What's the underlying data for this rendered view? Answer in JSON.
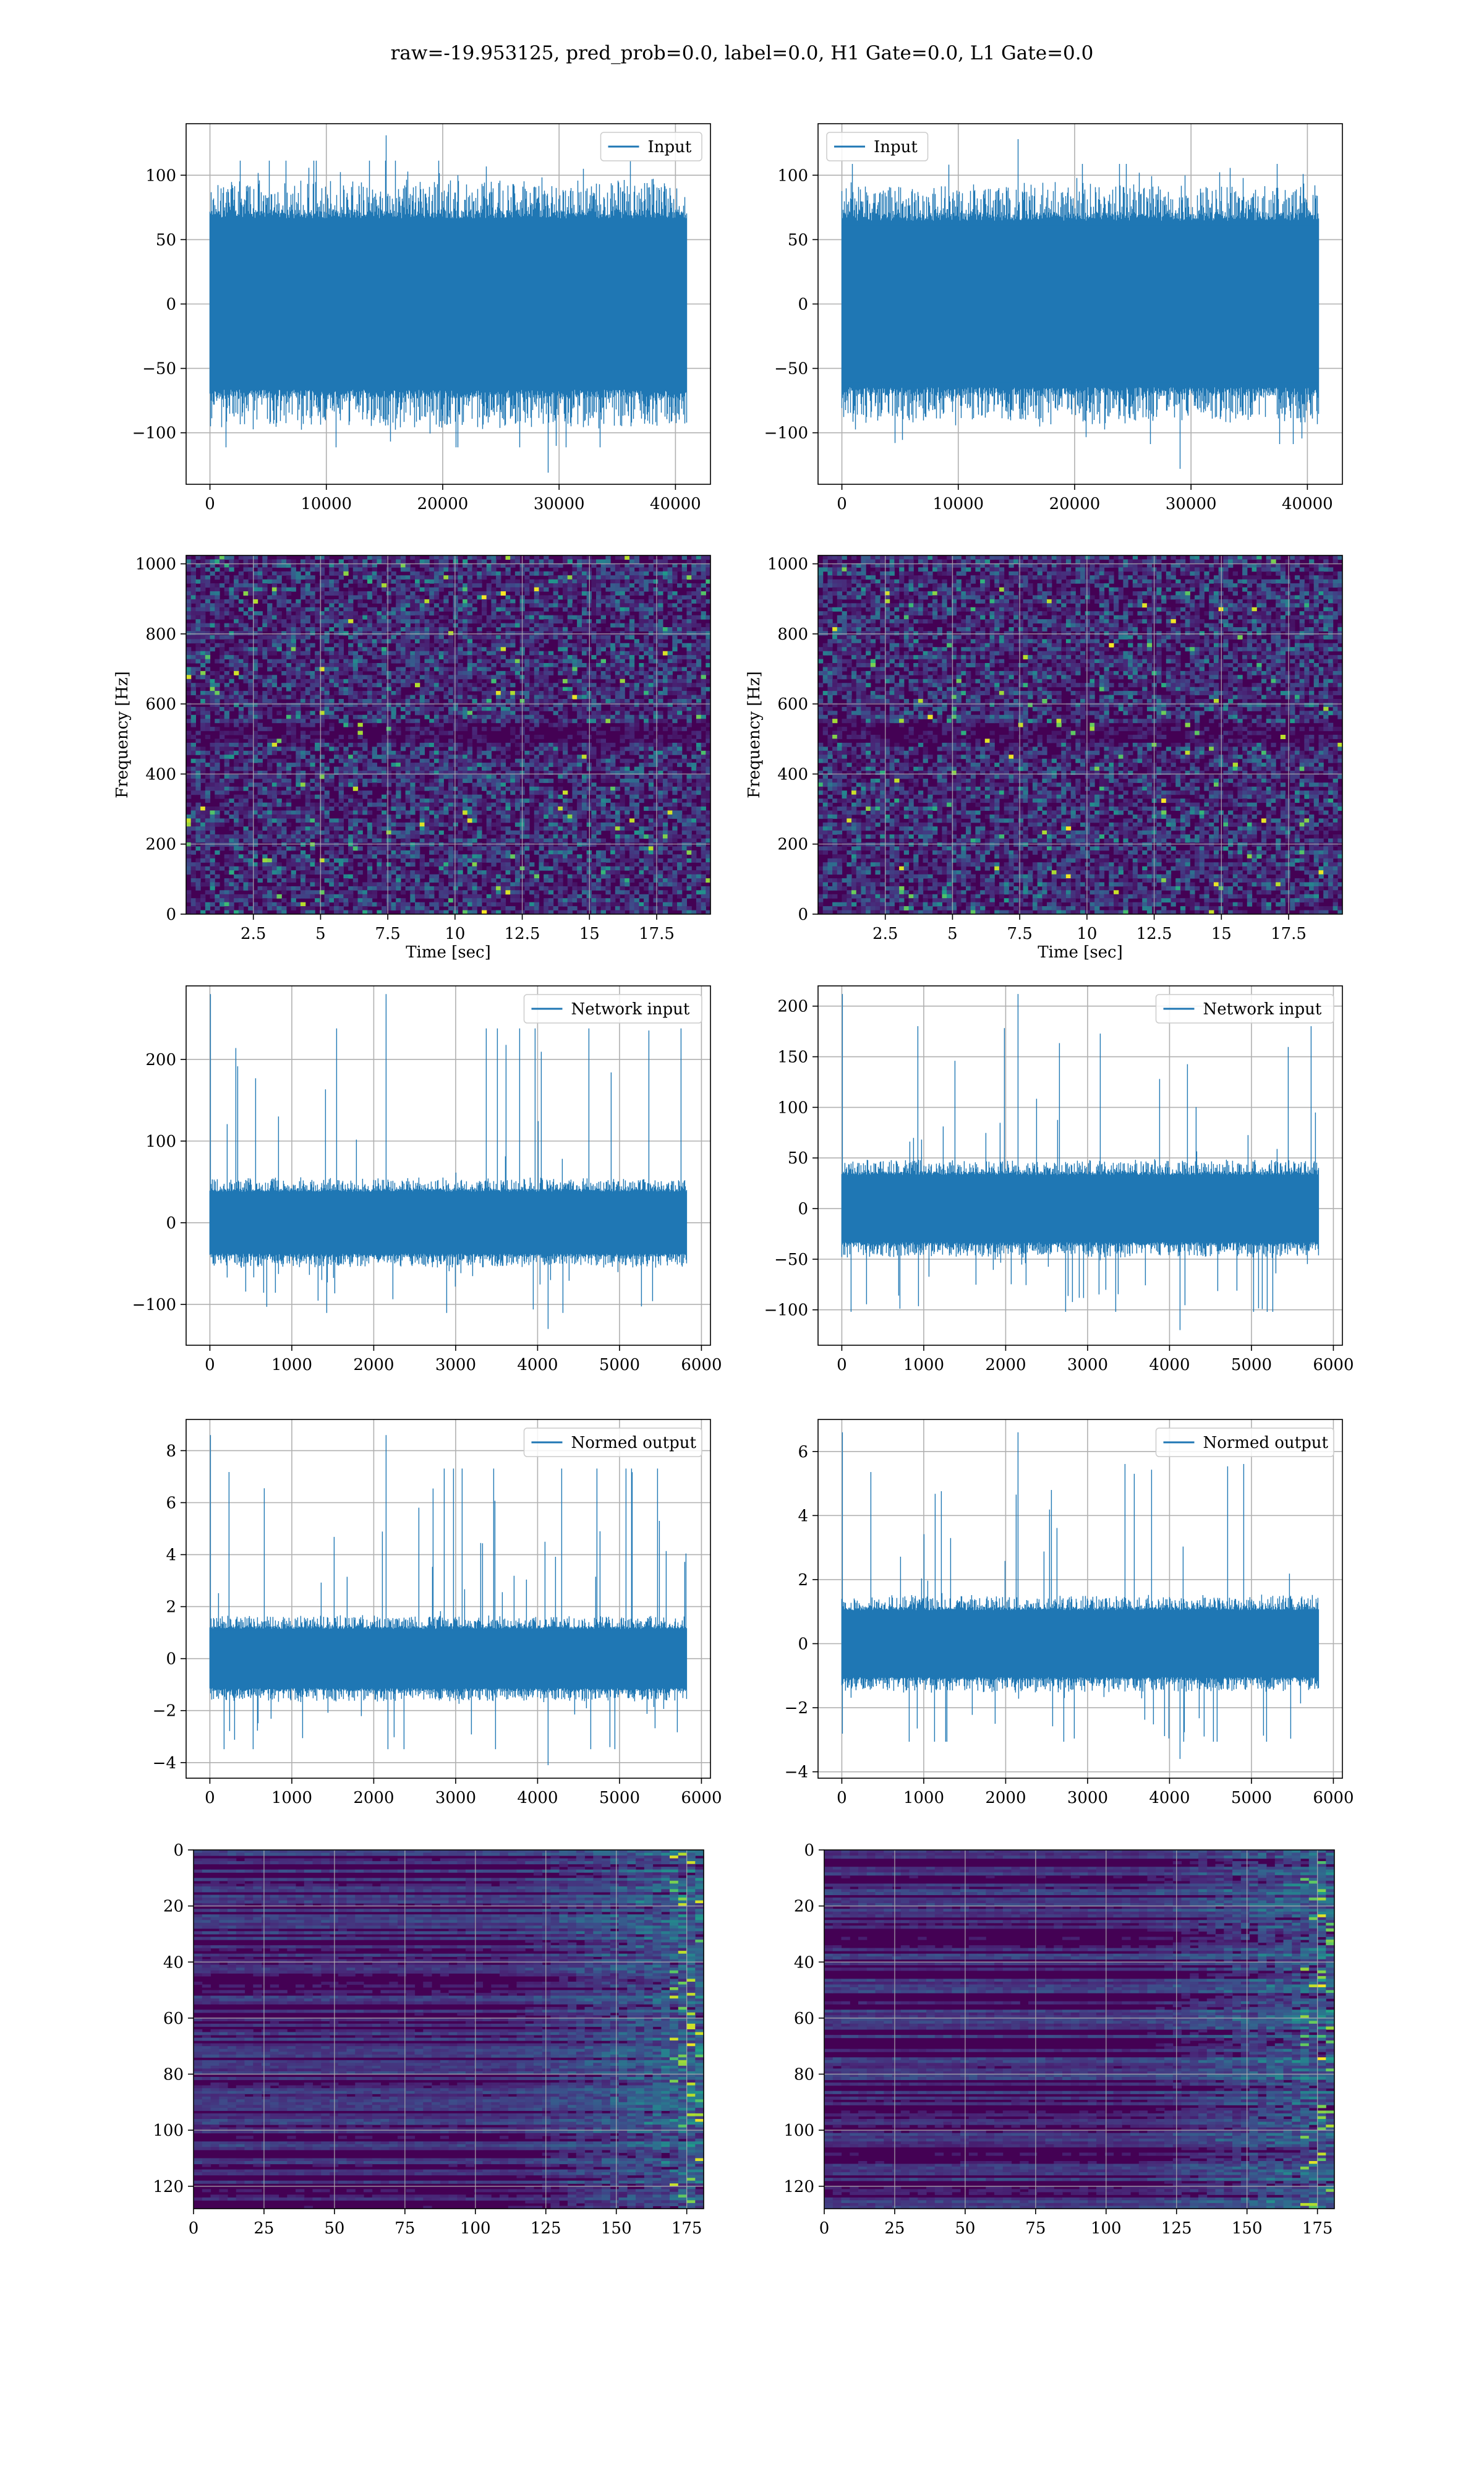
{
  "figure": {
    "title": "raw=-19.953125, pred_prob=0.0, label=0.0, H1 Gate=0.0, L1 Gate=0.0"
  },
  "colors": {
    "line": "#1f77b4",
    "grid": "#b0b0b0",
    "viridis_dark": "#440154",
    "viridis_mid": "#21918c",
    "viridis_bright": "#fde725"
  },
  "chart_data": [
    {
      "id": "input-left",
      "type": "line",
      "legend": {
        "label": "Input",
        "position": "upper right"
      },
      "xlim": [
        -2048,
        43008
      ],
      "ylim": [
        -140,
        140
      ],
      "xticks": [
        0,
        10000,
        20000,
        30000,
        40000
      ],
      "yticks": [
        -100,
        -50,
        0,
        50,
        100
      ],
      "xlabel": "",
      "ylabel": "",
      "signal": {
        "n_points": 40960,
        "x_range": [
          0,
          40960
        ],
        "core_band": [
          -70,
          70
        ],
        "peak_max": 131,
        "peak_min": -131
      }
    },
    {
      "id": "input-right",
      "type": "line",
      "legend": {
        "label": "Input",
        "position": "upper left"
      },
      "xlim": [
        -2048,
        43008
      ],
      "ylim": [
        -140,
        140
      ],
      "xticks": [
        0,
        10000,
        20000,
        30000,
        40000
      ],
      "yticks": [
        -100,
        -50,
        0,
        50,
        100
      ],
      "xlabel": "",
      "ylabel": "",
      "signal": {
        "n_points": 40960,
        "x_range": [
          0,
          40960
        ],
        "core_band": [
          -68,
          68
        ],
        "peak_max": 128,
        "peak_min": -128
      }
    },
    {
      "id": "spectrogram-left",
      "type": "heatmap",
      "xlim": [
        0,
        19.5
      ],
      "ylim": [
        0,
        1024
      ],
      "xticks": [
        2.5,
        5.0,
        7.5,
        10.0,
        12.5,
        15.0,
        17.5
      ],
      "yticks": [
        0,
        200,
        400,
        600,
        800,
        1000
      ],
      "xlabel": "Time [sec]",
      "ylabel": "Frequency [Hz]",
      "colormap": "viridis"
    },
    {
      "id": "spectrogram-right",
      "type": "heatmap",
      "xlim": [
        0,
        19.5
      ],
      "ylim": [
        0,
        1024
      ],
      "xticks": [
        2.5,
        5.0,
        7.5,
        10.0,
        12.5,
        15.0,
        17.5
      ],
      "yticks": [
        0,
        200,
        400,
        600,
        800,
        1000
      ],
      "xlabel": "Time [sec]",
      "ylabel": "Frequency [Hz]",
      "colormap": "viridis"
    },
    {
      "id": "network-input-left",
      "type": "line",
      "legend": {
        "label": "Network input",
        "position": "upper right"
      },
      "xlim": [
        -290,
        6110
      ],
      "ylim": [
        -150,
        290
      ],
      "xticks": [
        0,
        1000,
        2000,
        3000,
        4000,
        5000,
        6000
      ],
      "yticks": [
        -100,
        0,
        100,
        200
      ],
      "xlabel": "",
      "ylabel": "",
      "signal": {
        "n_points": 5820,
        "x_range": [
          0,
          5820
        ],
        "core_band": [
          -40,
          40
        ],
        "peak_max": 280,
        "peak_min": -130
      }
    },
    {
      "id": "network-input-right",
      "type": "line",
      "legend": {
        "label": "Network input",
        "position": "upper right"
      },
      "xlim": [
        -290,
        6110
      ],
      "ylim": [
        -135,
        220
      ],
      "xticks": [
        0,
        1000,
        2000,
        3000,
        4000,
        5000,
        6000
      ],
      "yticks": [
        -100,
        -50,
        0,
        50,
        100,
        150,
        200
      ],
      "xlabel": "",
      "ylabel": "",
      "signal": {
        "n_points": 5820,
        "x_range": [
          0,
          5820
        ],
        "core_band": [
          -35,
          35
        ],
        "peak_max": 212,
        "peak_min": -120
      }
    },
    {
      "id": "normed-output-left",
      "type": "line",
      "legend": {
        "label": "Normed output",
        "position": "upper right"
      },
      "xlim": [
        -290,
        6110
      ],
      "ylim": [
        -4.6,
        9.2
      ],
      "xticks": [
        0,
        1000,
        2000,
        3000,
        4000,
        5000,
        6000
      ],
      "yticks": [
        -4,
        -2,
        0,
        2,
        4,
        6,
        8
      ],
      "xlabel": "",
      "ylabel": "",
      "signal": {
        "n_points": 5820,
        "x_range": [
          0,
          5820
        ],
        "core_band": [
          -1.2,
          1.2
        ],
        "peak_max": 8.6,
        "peak_min": -4.1
      }
    },
    {
      "id": "normed-output-right",
      "type": "line",
      "legend": {
        "label": "Normed output",
        "position": "upper right"
      },
      "xlim": [
        -290,
        6110
      ],
      "ylim": [
        -4.2,
        7.0
      ],
      "xticks": [
        0,
        1000,
        2000,
        3000,
        4000,
        5000,
        6000
      ],
      "yticks": [
        -4,
        -2,
        0,
        2,
        4,
        6
      ],
      "xlabel": "",
      "ylabel": "",
      "signal": {
        "n_points": 5820,
        "x_range": [
          0,
          5820
        ],
        "core_band": [
          -1.1,
          1.1
        ],
        "peak_max": 6.6,
        "peak_min": -3.6
      }
    },
    {
      "id": "feature-map-left",
      "type": "heatmap",
      "xlim": [
        0,
        181
      ],
      "ylim": [
        128,
        0
      ],
      "xticks": [
        0,
        25,
        50,
        75,
        100,
        125,
        150,
        175
      ],
      "yticks": [
        0,
        20,
        40,
        60,
        80,
        100,
        120
      ],
      "xlabel": "",
      "ylabel": "",
      "colormap": "viridis",
      "rows": 128,
      "cols": 181
    },
    {
      "id": "feature-map-right",
      "type": "heatmap",
      "xlim": [
        0,
        181
      ],
      "ylim": [
        128,
        0
      ],
      "xticks": [
        0,
        25,
        50,
        75,
        100,
        125,
        150,
        175
      ],
      "yticks": [
        0,
        20,
        40,
        60,
        80,
        100,
        120
      ],
      "xlabel": "",
      "ylabel": "",
      "colormap": "viridis",
      "rows": 128,
      "cols": 181
    }
  ]
}
